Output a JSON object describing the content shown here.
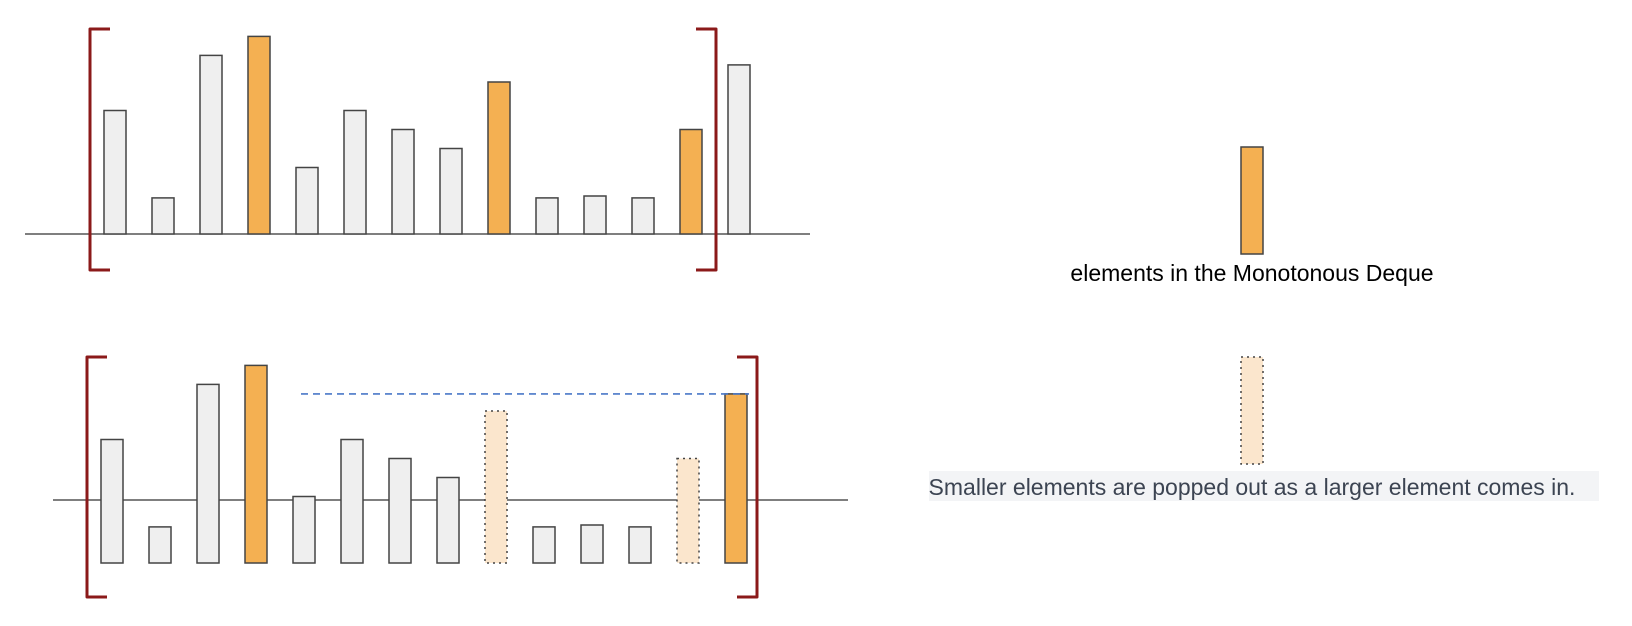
{
  "colors": {
    "bar_fill": "#efefef",
    "bar_stroke": "#444444",
    "deque_fill": "#f4b052",
    "popped_fill": "#fbe6cd",
    "bracket": "#8b1a1a",
    "dashed_line": "#4a78c8",
    "caption_bg": "#f3f4f6"
  },
  "top_panel": {
    "bars": [
      {
        "value": 6.5,
        "type": "normal"
      },
      {
        "value": 1.9,
        "type": "normal"
      },
      {
        "value": 9.4,
        "type": "normal"
      },
      {
        "value": 10.4,
        "type": "deque"
      },
      {
        "value": 3.5,
        "type": "normal"
      },
      {
        "value": 6.5,
        "type": "normal"
      },
      {
        "value": 5.5,
        "type": "normal"
      },
      {
        "value": 4.5,
        "type": "normal"
      },
      {
        "value": 8.0,
        "type": "deque"
      },
      {
        "value": 1.9,
        "type": "normal"
      },
      {
        "value": 2.0,
        "type": "normal"
      },
      {
        "value": 1.9,
        "type": "normal"
      },
      {
        "value": 5.5,
        "type": "deque"
      },
      {
        "value": 8.9,
        "type": "normal"
      }
    ]
  },
  "bottom_panel": {
    "bars": [
      {
        "value": 6.5,
        "type": "normal"
      },
      {
        "value": 1.9,
        "type": "normal"
      },
      {
        "value": 9.4,
        "type": "normal"
      },
      {
        "value": 10.4,
        "type": "deque"
      },
      {
        "value": 3.5,
        "type": "normal"
      },
      {
        "value": 6.5,
        "type": "normal"
      },
      {
        "value": 5.5,
        "type": "normal"
      },
      {
        "value": 4.5,
        "type": "normal"
      },
      {
        "value": 8.0,
        "type": "popped"
      },
      {
        "value": 1.9,
        "type": "normal"
      },
      {
        "value": 2.0,
        "type": "normal"
      },
      {
        "value": 1.9,
        "type": "normal"
      },
      {
        "value": 5.5,
        "type": "popped"
      },
      {
        "value": 8.9,
        "type": "deque"
      }
    ]
  },
  "legend": {
    "deque_label": "elements in the Monotonous Deque",
    "popped_label": "Smaller elements are popped out as a larger element comes in."
  }
}
